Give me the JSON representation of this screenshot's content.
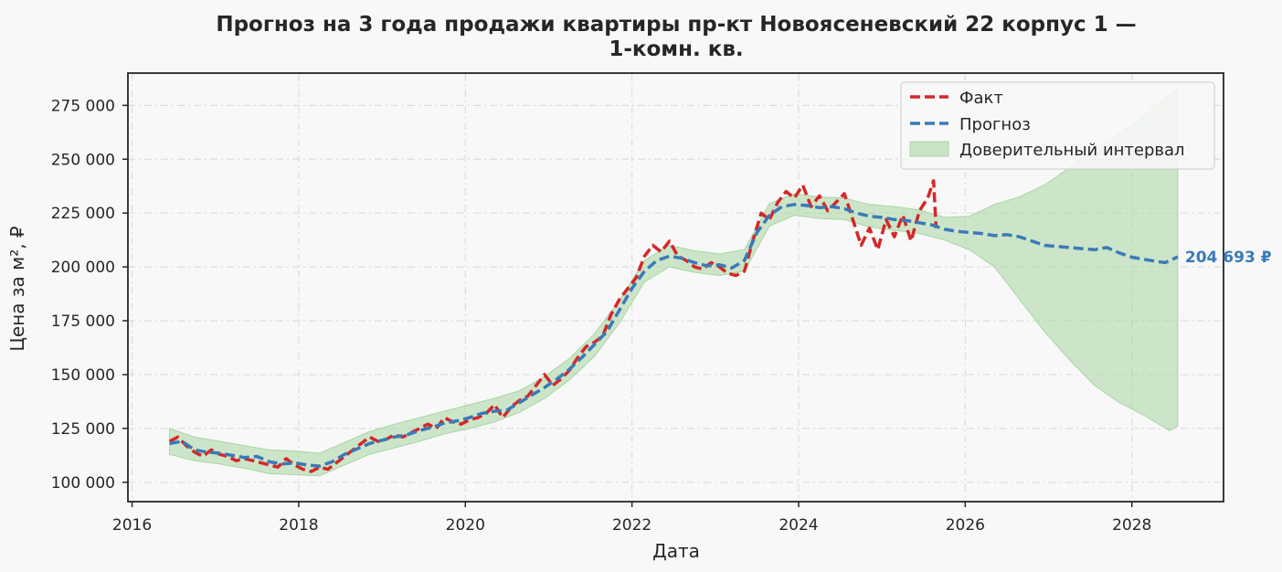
{
  "chart_data": {
    "type": "line",
    "title_line1": "Прогноз на 3 года продажи квартиры  пр-кт Новоясеневский 22 корпус 1 —",
    "title_line2": "1-комн. кв.",
    "xlabel": "Дата",
    "ylabel": "Цена за м², ₽",
    "xlim": [
      2015.95,
      2029.1
    ],
    "ylim": [
      91000,
      290000
    ],
    "x_ticks": [
      2016,
      2018,
      2020,
      2022,
      2024,
      2026,
      2028
    ],
    "x_tick_labels": [
      "2016",
      "2018",
      "2020",
      "2022",
      "2024",
      "2026",
      "2028"
    ],
    "y_ticks": [
      100000,
      125000,
      150000,
      175000,
      200000,
      225000,
      250000,
      275000
    ],
    "y_tick_labels": [
      "100 000",
      "125 000",
      "150 000",
      "175 000",
      "200 000",
      "225 000",
      "250 000",
      "275 000"
    ],
    "grid": true,
    "legend_position": "top-right",
    "series": [
      {
        "name": "Факт",
        "color": "#d62728",
        "style": "dashed",
        "points": [
          [
            2016.45,
            119000
          ],
          [
            2016.55,
            121000
          ],
          [
            2016.65,
            117000
          ],
          [
            2016.75,
            114000
          ],
          [
            2016.85,
            112000
          ],
          [
            2016.95,
            115000
          ],
          [
            2017.05,
            113000
          ],
          [
            2017.15,
            112000
          ],
          [
            2017.25,
            110000
          ],
          [
            2017.35,
            111000
          ],
          [
            2017.45,
            110000
          ],
          [
            2017.55,
            109000
          ],
          [
            2017.65,
            108000
          ],
          [
            2017.75,
            107000
          ],
          [
            2017.85,
            111000
          ],
          [
            2017.95,
            108000
          ],
          [
            2018.05,
            106000
          ],
          [
            2018.15,
            105000
          ],
          [
            2018.25,
            107000
          ],
          [
            2018.35,
            106000
          ],
          [
            2018.45,
            109000
          ],
          [
            2018.55,
            112000
          ],
          [
            2018.65,
            115000
          ],
          [
            2018.75,
            118000
          ],
          [
            2018.85,
            121000
          ],
          [
            2018.95,
            119000
          ],
          [
            2019.05,
            120000
          ],
          [
            2019.15,
            122000
          ],
          [
            2019.25,
            121000
          ],
          [
            2019.35,
            123000
          ],
          [
            2019.45,
            125000
          ],
          [
            2019.55,
            127000
          ],
          [
            2019.65,
            125000
          ],
          [
            2019.75,
            130000
          ],
          [
            2019.85,
            128000
          ],
          [
            2019.95,
            127000
          ],
          [
            2020.05,
            129000
          ],
          [
            2020.15,
            130000
          ],
          [
            2020.25,
            132000
          ],
          [
            2020.35,
            136000
          ],
          [
            2020.45,
            130000
          ],
          [
            2020.55,
            135000
          ],
          [
            2020.65,
            138000
          ],
          [
            2020.75,
            140000
          ],
          [
            2020.85,
            145000
          ],
          [
            2020.95,
            150000
          ],
          [
            2021.05,
            145000
          ],
          [
            2021.15,
            148000
          ],
          [
            2021.25,
            152000
          ],
          [
            2021.35,
            158000
          ],
          [
            2021.45,
            163000
          ],
          [
            2021.55,
            165000
          ],
          [
            2021.65,
            168000
          ],
          [
            2021.75,
            178000
          ],
          [
            2021.85,
            185000
          ],
          [
            2021.95,
            190000
          ],
          [
            2022.05,
            195000
          ],
          [
            2022.15,
            205000
          ],
          [
            2022.25,
            210000
          ],
          [
            2022.35,
            207000
          ],
          [
            2022.45,
            212000
          ],
          [
            2022.55,
            205000
          ],
          [
            2022.65,
            203000
          ],
          [
            2022.75,
            200000
          ],
          [
            2022.85,
            199000
          ],
          [
            2022.95,
            202000
          ],
          [
            2023.05,
            200000
          ],
          [
            2023.15,
            197000
          ],
          [
            2023.25,
            196000
          ],
          [
            2023.35,
            198000
          ],
          [
            2023.45,
            212000
          ],
          [
            2023.55,
            225000
          ],
          [
            2023.65,
            222000
          ],
          [
            2023.75,
            230000
          ],
          [
            2023.85,
            235000
          ],
          [
            2023.95,
            232000
          ],
          [
            2024.05,
            238000
          ],
          [
            2024.15,
            228000
          ],
          [
            2024.25,
            233000
          ],
          [
            2024.35,
            226000
          ],
          [
            2024.45,
            230000
          ],
          [
            2024.55,
            234000
          ],
          [
            2024.65,
            222000
          ],
          [
            2024.75,
            210000
          ],
          [
            2024.85,
            218000
          ],
          [
            2024.95,
            208000
          ],
          [
            2025.05,
            222000
          ],
          [
            2025.15,
            214000
          ],
          [
            2025.25,
            224000
          ],
          [
            2025.35,
            212000
          ],
          [
            2025.45,
            226000
          ],
          [
            2025.55,
            232000
          ],
          [
            2025.62,
            240000
          ],
          [
            2025.65,
            218000
          ]
        ]
      },
      {
        "name": "Прогноз",
        "color": "#3a7ab7",
        "style": "dashed",
        "points": [
          [
            2016.45,
            118000
          ],
          [
            2016.6,
            119000
          ],
          [
            2016.75,
            115000
          ],
          [
            2016.9,
            114000
          ],
          [
            2017.05,
            113500
          ],
          [
            2017.2,
            112500
          ],
          [
            2017.35,
            111500
          ],
          [
            2017.5,
            112000
          ],
          [
            2017.65,
            109500
          ],
          [
            2017.8,
            108500
          ],
          [
            2017.95,
            109000
          ],
          [
            2018.1,
            108000
          ],
          [
            2018.25,
            107500
          ],
          [
            2018.4,
            109500
          ],
          [
            2018.55,
            113000
          ],
          [
            2018.7,
            115500
          ],
          [
            2018.85,
            118000
          ],
          [
            2019.0,
            119500
          ],
          [
            2019.15,
            121000
          ],
          [
            2019.3,
            122000
          ],
          [
            2019.45,
            124000
          ],
          [
            2019.6,
            125500
          ],
          [
            2019.75,
            127500
          ],
          [
            2019.9,
            128500
          ],
          [
            2020.05,
            130000
          ],
          [
            2020.2,
            132000
          ],
          [
            2020.35,
            133000
          ],
          [
            2020.5,
            133500
          ],
          [
            2020.65,
            137000
          ],
          [
            2020.8,
            140500
          ],
          [
            2020.95,
            144000
          ],
          [
            2021.1,
            148000
          ],
          [
            2021.25,
            152500
          ],
          [
            2021.4,
            158000
          ],
          [
            2021.55,
            164000
          ],
          [
            2021.7,
            170000
          ],
          [
            2021.85,
            180000
          ],
          [
            2022.0,
            190000
          ],
          [
            2022.15,
            198000
          ],
          [
            2022.3,
            203000
          ],
          [
            2022.45,
            205000
          ],
          [
            2022.6,
            204000
          ],
          [
            2022.75,
            202000
          ],
          [
            2022.9,
            200500
          ],
          [
            2023.05,
            201000
          ],
          [
            2023.2,
            199500
          ],
          [
            2023.35,
            203000
          ],
          [
            2023.5,
            216000
          ],
          [
            2023.65,
            224000
          ],
          [
            2023.8,
            228000
          ],
          [
            2023.95,
            229000
          ],
          [
            2024.1,
            228500
          ],
          [
            2024.25,
            227500
          ],
          [
            2024.4,
            228000
          ],
          [
            2024.55,
            227000
          ],
          [
            2024.7,
            225000
          ],
          [
            2024.85,
            223500
          ],
          [
            2025.0,
            223000
          ],
          [
            2025.15,
            222000
          ],
          [
            2025.3,
            221500
          ],
          [
            2025.45,
            220500
          ],
          [
            2025.6,
            219500
          ],
          [
            2025.75,
            217500
          ],
          [
            2025.9,
            216500
          ],
          [
            2026.05,
            216000
          ],
          [
            2026.2,
            215500
          ],
          [
            2026.35,
            214500
          ],
          [
            2026.5,
            215000
          ],
          [
            2026.65,
            214000
          ],
          [
            2026.8,
            212000
          ],
          [
            2026.95,
            210000
          ],
          [
            2027.1,
            209500
          ],
          [
            2027.25,
            209000
          ],
          [
            2027.4,
            208500
          ],
          [
            2027.55,
            208000
          ],
          [
            2027.7,
            209000
          ],
          [
            2027.85,
            206500
          ],
          [
            2028.0,
            204500
          ],
          [
            2028.15,
            203500
          ],
          [
            2028.3,
            202500
          ],
          [
            2028.4,
            202000
          ],
          [
            2028.55,
            204693
          ]
        ]
      }
    ],
    "confidence_interval": {
      "name": "Доверительный интервал",
      "color": "#a8d5a2",
      "x": [
        2016.45,
        2016.75,
        2017.05,
        2017.35,
        2017.65,
        2017.95,
        2018.25,
        2018.55,
        2018.85,
        2019.15,
        2019.45,
        2019.75,
        2020.05,
        2020.35,
        2020.65,
        2020.95,
        2021.25,
        2021.55,
        2021.85,
        2022.15,
        2022.45,
        2022.75,
        2023.05,
        2023.35,
        2023.65,
        2023.95,
        2024.25,
        2024.55,
        2024.85,
        2025.15,
        2025.45,
        2025.75,
        2026.05,
        2026.35,
        2026.65,
        2026.95,
        2027.25,
        2027.55,
        2027.85,
        2028.15,
        2028.45,
        2028.55
      ],
      "lower": [
        113000,
        110000,
        108500,
        106500,
        104000,
        103500,
        103000,
        108000,
        113000,
        116000,
        119000,
        122500,
        125000,
        128000,
        132500,
        139000,
        147500,
        158500,
        174000,
        193000,
        200000,
        197500,
        196000,
        198000,
        219000,
        224000,
        222500,
        222000,
        218500,
        217000,
        215500,
        212500,
        208000,
        200000,
        185000,
        170000,
        157000,
        145000,
        137000,
        131000,
        124000,
        126000
      ],
      "upper": [
        125000,
        121000,
        119000,
        117000,
        115000,
        114500,
        113500,
        118500,
        123500,
        127000,
        130000,
        133000,
        136000,
        139000,
        142500,
        149000,
        157500,
        169000,
        184500,
        203000,
        210000,
        207500,
        206000,
        208000,
        229500,
        234000,
        232500,
        232000,
        229000,
        228000,
        226500,
        223000,
        223500,
        229000,
        232500,
        238000,
        246000,
        255000,
        262000,
        270000,
        280000,
        283000
      ]
    },
    "end_label": "204 693 ₽"
  }
}
